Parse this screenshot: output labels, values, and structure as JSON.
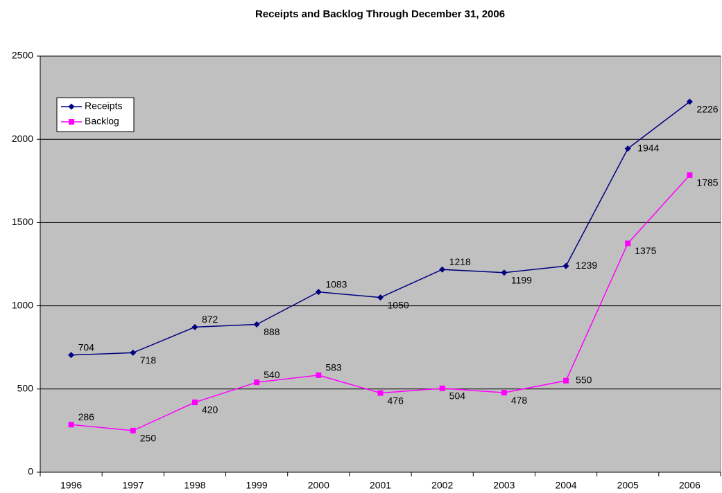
{
  "chart_data": {
    "type": "line",
    "title": "Receipts and Backlog Through December 31, 2006",
    "categories": [
      "1996",
      "1997",
      "1998",
      "1999",
      "2000",
      "2001",
      "2002",
      "2003",
      "2004",
      "2005",
      "2006"
    ],
    "series": [
      {
        "name": "Receipts",
        "color": "#000080",
        "marker": "diamond",
        "values": [
          704,
          718,
          872,
          888,
          1083,
          1050,
          1218,
          1199,
          1239,
          1944,
          2226
        ]
      },
      {
        "name": "Backlog",
        "color": "#ff00ff",
        "marker": "square",
        "values": [
          286,
          250,
          420,
          540,
          583,
          476,
          504,
          478,
          550,
          1375,
          1785
        ]
      }
    ],
    "ylim": [
      0,
      2500
    ],
    "yticks": [
      0,
      500,
      1000,
      1500,
      2000,
      2500
    ],
    "grid": true,
    "legend": "upper left"
  }
}
